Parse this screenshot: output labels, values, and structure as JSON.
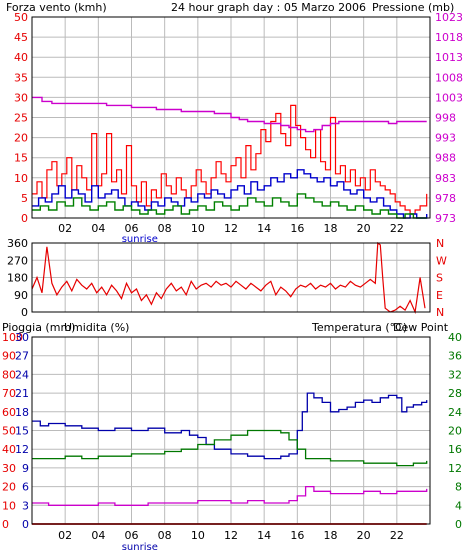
{
  "colors": {
    "wind": "#e60000",
    "wind_gust": "#ff0000",
    "wind_avg_blue": "#0000cc",
    "wind_avg_green": "#008000",
    "pressure": "#cc00cc",
    "direction": "#e60000",
    "rain": "#e60000",
    "humidity": "#0000aa",
    "temperature": "#007700",
    "dewpoint": "#cc00cc",
    "grid": "#bbbbbb",
    "frame": "#000000"
  },
  "chart_data": [
    {
      "type": "line",
      "panel": "wind-pressure",
      "title": "24 hour graph day : 05 Marzo 2006",
      "left_label": "Forza vento (kmh)",
      "right_label": "Pressione (mb)",
      "x_ticks": [
        "02",
        "04",
        "06",
        "08",
        "10",
        "12",
        "14",
        "16",
        "18",
        "20",
        "22"
      ],
      "x_tick_hours": [
        2,
        4,
        6,
        8,
        10,
        12,
        14,
        16,
        18,
        20,
        22
      ],
      "x_range_hours": [
        0,
        24
      ],
      "sunrise_label": "sunrise",
      "sunrise_hour": 6.5,
      "ylim_left": [
        0,
        50
      ],
      "y_ticks_left": [
        "0",
        "5",
        "10",
        "15",
        "20",
        "25",
        "30",
        "35",
        "40",
        "45",
        "50"
      ],
      "ylim_right": [
        973,
        1023
      ],
      "y_ticks_right": [
        "973",
        "978",
        "983",
        "988",
        "993",
        "998",
        "1003",
        "1008",
        "1013",
        "1018",
        "1023"
      ],
      "series": [
        {
          "key": "pressure",
          "x": [
            0,
            0.6,
            1.2,
            2.0,
            3.0,
            4.0,
            4.5,
            5.0,
            6.0,
            7.0,
            7.5,
            8.0,
            9.0,
            10.0,
            11.0,
            12.0,
            12.5,
            13.0,
            14.0,
            15.0,
            15.5,
            16.0,
            16.5,
            17.0,
            17.5,
            18.0,
            18.5,
            19.0,
            20.0,
            21.0,
            21.5,
            22.0,
            22.5,
            23.0,
            23.8
          ],
          "values": [
            1003,
            1002,
            1001.5,
            1001.5,
            1001.5,
            1001.5,
            1001,
            1001,
            1000.5,
            1000.5,
            1000,
            1000,
            999.5,
            999.5,
            999,
            998,
            997.5,
            997,
            996.5,
            996,
            995.5,
            995,
            994.5,
            995,
            996,
            996.5,
            997,
            997,
            997,
            997,
            996.5,
            997,
            997,
            997,
            997
          ]
        },
        {
          "key": "wind_gust",
          "x": [
            0,
            0.3,
            0.6,
            0.9,
            1.2,
            1.5,
            1.8,
            2.1,
            2.4,
            2.7,
            3.0,
            3.3,
            3.6,
            3.9,
            4.2,
            4.5,
            4.8,
            5.1,
            5.4,
            5.7,
            6.0,
            6.3,
            6.6,
            6.9,
            7.2,
            7.5,
            7.8,
            8.1,
            8.4,
            8.7,
            9.0,
            9.3,
            9.6,
            9.9,
            10.2,
            10.5,
            10.8,
            11.1,
            11.4,
            11.7,
            12.0,
            12.3,
            12.6,
            12.9,
            13.2,
            13.5,
            13.8,
            14.1,
            14.4,
            14.7,
            15.0,
            15.3,
            15.6,
            15.9,
            16.2,
            16.5,
            16.8,
            17.1,
            17.4,
            17.7,
            18.0,
            18.3,
            18.6,
            18.9,
            19.2,
            19.5,
            19.8,
            20.1,
            20.4,
            20.7,
            21.0,
            21.3,
            21.6,
            21.9,
            22.2,
            22.5,
            22.8,
            23.1,
            23.4,
            23.8
          ],
          "values": [
            6,
            9,
            5,
            12,
            14,
            8,
            11,
            15,
            7,
            13,
            10,
            7,
            21,
            8,
            11,
            21,
            9,
            12,
            6,
            18,
            8,
            4,
            9,
            3,
            7,
            5,
            11,
            8,
            6,
            10,
            7,
            5,
            8,
            12,
            9,
            6,
            10,
            14,
            11,
            9,
            13,
            15,
            10,
            18,
            12,
            16,
            22,
            19,
            24,
            26,
            21,
            18,
            28,
            23,
            20,
            17,
            15,
            22,
            14,
            12,
            25,
            11,
            13,
            9,
            12,
            8,
            10,
            7,
            12,
            9,
            8,
            7,
            6,
            4,
            3,
            2,
            1,
            2,
            3,
            6
          ]
        },
        {
          "key": "wind_avg_blue",
          "x": [
            0,
            0.4,
            0.8,
            1.2,
            1.6,
            2.0,
            2.4,
            2.8,
            3.2,
            3.6,
            4.0,
            4.4,
            4.8,
            5.2,
            5.6,
            6.0,
            6.4,
            6.8,
            7.2,
            7.6,
            8.0,
            8.4,
            8.8,
            9.2,
            9.6,
            10.0,
            10.4,
            10.8,
            11.2,
            11.6,
            12.0,
            12.4,
            12.8,
            13.2,
            13.6,
            14.0,
            14.4,
            14.8,
            15.2,
            15.6,
            16.0,
            16.4,
            16.8,
            17.2,
            17.6,
            18.0,
            18.4,
            18.8,
            19.2,
            19.6,
            20.0,
            20.4,
            20.8,
            21.2,
            21.6,
            22.0,
            22.4,
            22.8,
            23.2,
            23.8
          ],
          "values": [
            3,
            5,
            4,
            6,
            8,
            5,
            7,
            6,
            4,
            8,
            5,
            6,
            7,
            5,
            3,
            4,
            3,
            2,
            4,
            3,
            5,
            4,
            3,
            5,
            4,
            6,
            5,
            7,
            6,
            5,
            7,
            8,
            6,
            9,
            7,
            8,
            10,
            9,
            11,
            10,
            12,
            11,
            10,
            9,
            10,
            8,
            9,
            7,
            6,
            7,
            5,
            4,
            5,
            3,
            2,
            1,
            0,
            1,
            0,
            1
          ]
        },
        {
          "key": "wind_avg_green",
          "x": [
            0,
            0.5,
            1.0,
            1.5,
            2.0,
            2.5,
            3.0,
            3.5,
            4.0,
            4.5,
            5.0,
            5.5,
            6.0,
            6.5,
            7.0,
            7.5,
            8.0,
            8.5,
            9.0,
            9.5,
            10.0,
            10.5,
            11.0,
            11.5,
            12.0,
            12.5,
            13.0,
            13.5,
            14.0,
            14.5,
            15.0,
            15.5,
            16.0,
            16.5,
            17.0,
            17.5,
            18.0,
            18.5,
            19.0,
            19.5,
            20.0,
            20.5,
            21.0,
            21.5,
            22.0,
            22.5,
            23.0,
            23.8
          ],
          "values": [
            2,
            3,
            2,
            4,
            3,
            5,
            3,
            2,
            3,
            4,
            2,
            3,
            2,
            1,
            2,
            1,
            2,
            3,
            1,
            2,
            3,
            2,
            4,
            3,
            2,
            3,
            5,
            4,
            3,
            5,
            4,
            3,
            6,
            5,
            4,
            3,
            4,
            3,
            2,
            3,
            2,
            1,
            2,
            1,
            0,
            1,
            0,
            0
          ]
        }
      ]
    },
    {
      "type": "line",
      "panel": "wind-direction",
      "y_ticks_left": [
        "0",
        "90",
        "180",
        "270",
        "360"
      ],
      "ylim_left": [
        0,
        360
      ],
      "y_ticks_right": [
        "N",
        "E",
        "S",
        "W",
        "N"
      ],
      "x_ticks": [
        "02",
        "04",
        "06",
        "08",
        "10",
        "12",
        "14",
        "16",
        "18",
        "20",
        "22"
      ],
      "x_tick_hours": [
        2,
        4,
        6,
        8,
        10,
        12,
        14,
        16,
        18,
        20,
        22
      ],
      "x_range_hours": [
        0,
        24
      ],
      "series": [
        {
          "key": "direction",
          "x": [
            0,
            0.3,
            0.6,
            0.9,
            1.2,
            1.5,
            1.8,
            2.1,
            2.4,
            2.7,
            3.0,
            3.3,
            3.6,
            3.9,
            4.2,
            4.5,
            4.8,
            5.1,
            5.4,
            5.7,
            6.0,
            6.3,
            6.6,
            6.9,
            7.2,
            7.5,
            7.8,
            8.1,
            8.4,
            8.7,
            9.0,
            9.3,
            9.6,
            9.9,
            10.2,
            10.5,
            10.8,
            11.1,
            11.4,
            11.7,
            12.0,
            12.3,
            12.6,
            12.9,
            13.2,
            13.5,
            13.8,
            14.1,
            14.4,
            14.7,
            15.0,
            15.3,
            15.6,
            15.9,
            16.2,
            16.5,
            16.8,
            17.1,
            17.4,
            17.7,
            18.0,
            18.3,
            18.6,
            18.9,
            19.2,
            19.5,
            19.8,
            20.1,
            20.4,
            20.7,
            20.85,
            21.0,
            21.15,
            21.3,
            21.6,
            21.9,
            22.2,
            22.5,
            22.8,
            23.1,
            23.4,
            23.7
          ],
          "values": [
            120,
            180,
            100,
            340,
            150,
            90,
            130,
            160,
            110,
            170,
            140,
            120,
            150,
            100,
            130,
            90,
            140,
            110,
            70,
            150,
            100,
            120,
            60,
            90,
            40,
            100,
            70,
            120,
            150,
            110,
            130,
            90,
            160,
            120,
            140,
            150,
            130,
            160,
            140,
            150,
            130,
            160,
            140,
            120,
            150,
            130,
            110,
            140,
            160,
            90,
            130,
            110,
            80,
            120,
            140,
            130,
            150,
            120,
            140,
            130,
            150,
            120,
            140,
            130,
            160,
            140,
            130,
            150,
            170,
            150,
            360,
            350,
            180,
            20,
            0,
            10,
            30,
            10,
            60,
            0,
            180,
            20
          ]
        }
      ]
    },
    {
      "type": "line",
      "panel": "temp-humidity",
      "rain_label": "Pioggia (mm)",
      "humidity_label": "Umidita (%)",
      "temperature_label": "Temperatura (°C)",
      "dewpoint_label": "Dew Point",
      "y_ticks_rain": [
        "0",
        "10",
        "20",
        "30",
        "40",
        "50",
        "60",
        "70",
        "80",
        "90",
        "100"
      ],
      "ylim_rain": [
        0,
        100
      ],
      "y_ticks_humidity": [
        "0",
        "3",
        "6",
        "9",
        "12",
        "15",
        "18",
        "21",
        "24",
        "27",
        "30"
      ],
      "ylim_humidity": [
        0,
        30
      ],
      "y_ticks_temp": [
        "0",
        "4",
        "8",
        "12",
        "16",
        "20",
        "24",
        "28",
        "32",
        "36",
        "40"
      ],
      "ylim_temp": [
        0,
        40
      ],
      "x_ticks": [
        "02",
        "04",
        "06",
        "08",
        "10",
        "12",
        "14",
        "16",
        "18",
        "20",
        "22"
      ],
      "x_tick_hours": [
        2,
        4,
        6,
        8,
        10,
        12,
        14,
        16,
        18,
        20,
        22
      ],
      "x_range_hours": [
        0,
        24
      ],
      "sunrise_label": "sunrise",
      "sunrise_hour": 6.5,
      "series": [
        {
          "key": "humidity",
          "axis": "temp",
          "x": [
            0,
            0.5,
            1.0,
            2.0,
            3.0,
            4.0,
            5.0,
            6.0,
            7.0,
            8.0,
            9.0,
            9.5,
            10.0,
            10.5,
            11.0,
            12.0,
            13.0,
            14.0,
            15.0,
            15.5,
            16.0,
            16.3,
            16.6,
            17.0,
            17.5,
            18.0,
            18.5,
            19.0,
            19.5,
            20.0,
            20.5,
            21.0,
            21.5,
            22.0,
            22.3,
            22.6,
            23.0,
            23.5,
            23.8
          ],
          "values": [
            22,
            21,
            21.5,
            21,
            20.5,
            20,
            20.5,
            20,
            20.5,
            19.5,
            20,
            19,
            18.5,
            17,
            16,
            15,
            14.5,
            14,
            14.5,
            15,
            20,
            24,
            28,
            27,
            26,
            24,
            24.5,
            25,
            26,
            26.5,
            26,
            27,
            27.5,
            27,
            24,
            25,
            25.5,
            26,
            26.5
          ]
        },
        {
          "key": "temperature",
          "axis": "temp",
          "x": [
            0,
            1.0,
            2.0,
            3.0,
            4.0,
            5.0,
            6.0,
            7.0,
            8.0,
            9.0,
            10.0,
            11.0,
            12.0,
            13.0,
            14.0,
            15.0,
            15.5,
            16.0,
            16.5,
            17.0,
            18.0,
            19.0,
            20.0,
            21.0,
            22.0,
            23.0,
            23.8
          ],
          "values": [
            14,
            14,
            14.5,
            14,
            14.5,
            14.5,
            15,
            15,
            15.5,
            16,
            17,
            18,
            19,
            20,
            20,
            19.5,
            18,
            16,
            14,
            14,
            13.5,
            13.5,
            13,
            13,
            12.5,
            13,
            13.5
          ]
        },
        {
          "key": "dewpoint",
          "axis": "temp",
          "x": [
            0,
            1.0,
            2.0,
            3.0,
            4.0,
            5.0,
            6.0,
            7.0,
            8.0,
            9.0,
            10.0,
            11.0,
            12.0,
            13.0,
            14.0,
            15.0,
            15.5,
            16.0,
            16.5,
            17.0,
            18.0,
            19.0,
            20.0,
            21.0,
            22.0,
            23.0,
            23.8
          ],
          "values": [
            4.5,
            4,
            4,
            4,
            4.5,
            4,
            4,
            4.5,
            4.5,
            4.5,
            5,
            5,
            4.5,
            5,
            4.5,
            4.5,
            5,
            6,
            8,
            7,
            6.5,
            6.5,
            7,
            6.5,
            7,
            7,
            7.5
          ]
        },
        {
          "key": "rain",
          "axis": "rain",
          "x": [
            0,
            23.8
          ],
          "values": [
            0,
            0
          ]
        }
      ]
    }
  ]
}
